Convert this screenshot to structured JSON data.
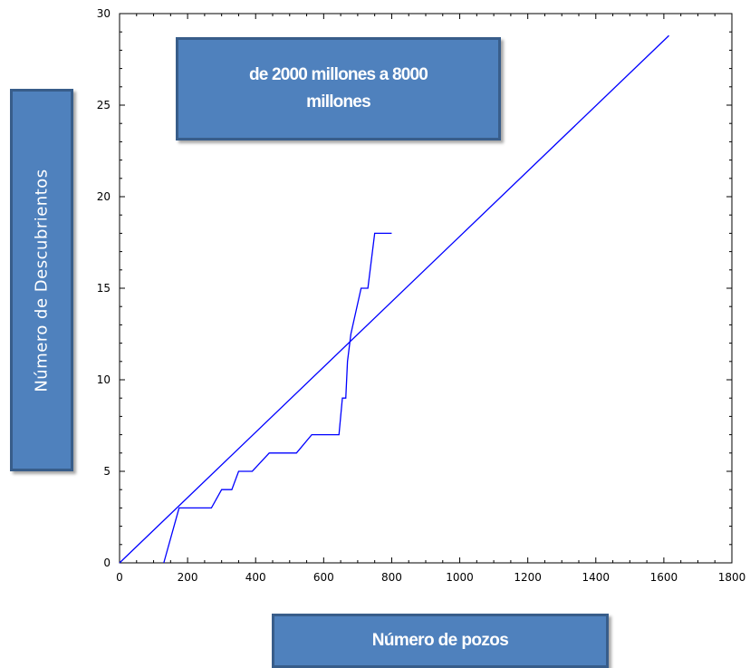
{
  "chart_data": {
    "type": "line",
    "title": "de 2000 millones a 8000 millones",
    "xlabel": "Número de pozos",
    "ylabel": "Número de Descubrientos",
    "xlim": [
      0,
      1800
    ],
    "ylim": [
      0,
      30
    ],
    "xticks": [
      0,
      200,
      400,
      600,
      800,
      1000,
      1200,
      1400,
      1600,
      1800
    ],
    "yticks": [
      0,
      5,
      10,
      15,
      20,
      25,
      30
    ],
    "grid": false,
    "series": [
      {
        "color": "#0000ff",
        "x": [
          130,
          175,
          270,
          300,
          330,
          350,
          390,
          440,
          520,
          565,
          645,
          655,
          665,
          670,
          680,
          710,
          730,
          750,
          800
        ],
        "y": [
          0,
          3,
          3,
          4,
          4,
          5,
          5,
          6,
          6,
          7,
          7,
          9,
          9,
          11,
          12.5,
          15,
          15,
          18,
          18
        ]
      },
      {
        "color": "#0000ff",
        "x": [
          0,
          1615
        ],
        "y": [
          0,
          28.8
        ]
      }
    ]
  }
}
